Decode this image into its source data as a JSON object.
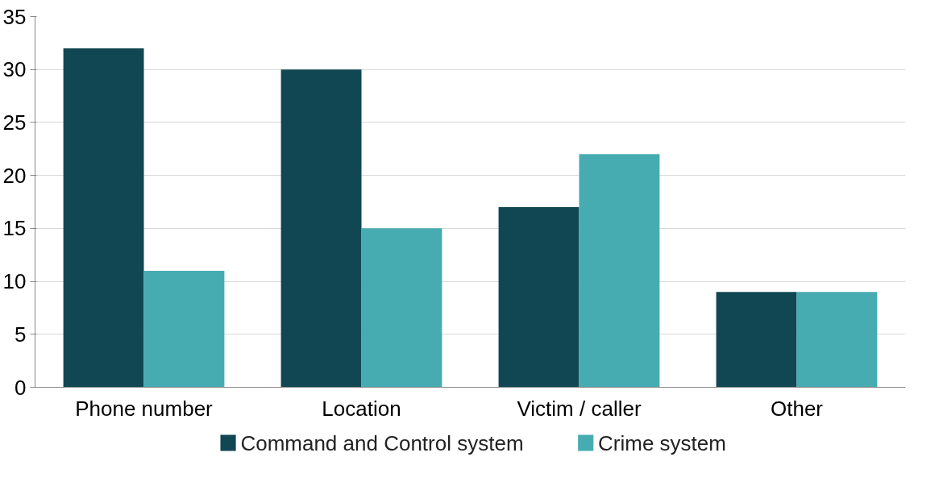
{
  "chart_data": {
    "type": "bar",
    "categories": [
      "Phone number",
      "Location",
      "Victim / caller",
      "Other"
    ],
    "series": [
      {
        "name": "Command and Control system",
        "color": "#104752",
        "values": [
          32,
          30,
          17,
          9
        ]
      },
      {
        "name": "Crime system",
        "color": "#47acb1",
        "values": [
          11,
          15,
          22,
          9
        ]
      }
    ],
    "ylim": [
      0,
      35
    ],
    "yticks": [
      0,
      5,
      10,
      15,
      20,
      25,
      30,
      35
    ],
    "grid": "y",
    "legend": "bottom"
  }
}
